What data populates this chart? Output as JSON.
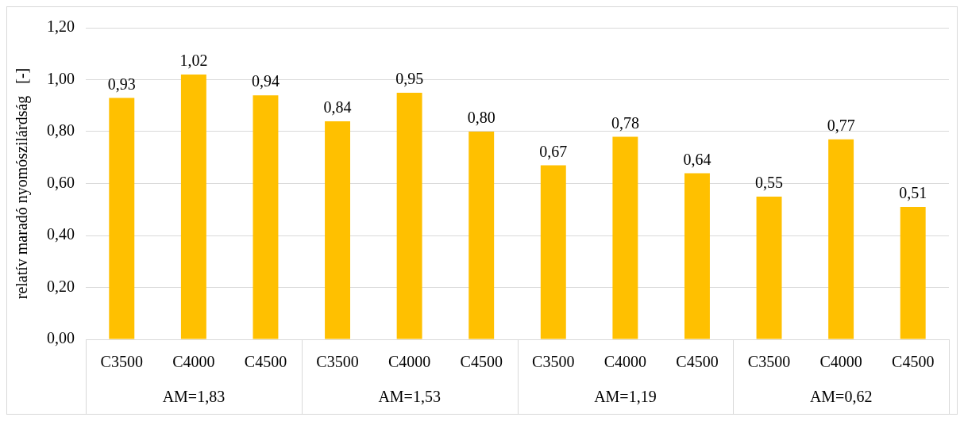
{
  "chart_data": {
    "type": "bar",
    "ylabel": "relatív maradó nyomószilárdság   [-]",
    "categories": [
      "C3500",
      "C4000",
      "C4500",
      "C3500",
      "C4000",
      "C4500",
      "C3500",
      "C4000",
      "C4500",
      "C3500",
      "C4000",
      "C4500"
    ],
    "values": [
      0.93,
      1.02,
      0.94,
      0.84,
      0.95,
      0.8,
      0.67,
      0.78,
      0.64,
      0.55,
      0.77,
      0.51
    ],
    "value_labels": [
      "0,93",
      "1,02",
      "0,94",
      "0,84",
      "0,95",
      "0,80",
      "0,67",
      "0,78",
      "0,64",
      "0,55",
      "0,77",
      "0,51"
    ],
    "color": "#ffc000",
    "ylim": [
      0,
      1.2
    ],
    "yticks": [
      {
        "value": 0,
        "label": "0,00"
      },
      {
        "value": 0.2,
        "label": "0,20"
      },
      {
        "value": 0.4,
        "label": "0,40"
      },
      {
        "value": 0.6,
        "label": "0,60"
      },
      {
        "value": 0.8,
        "label": "0,80"
      },
      {
        "value": 1.0,
        "label": "1,00"
      },
      {
        "value": 1.2,
        "label": "1,20"
      }
    ],
    "grid": "y",
    "annotations": [
      "AM=1,83",
      "AM=1,53",
      "AM=1,19",
      "AM=0,62"
    ]
  }
}
